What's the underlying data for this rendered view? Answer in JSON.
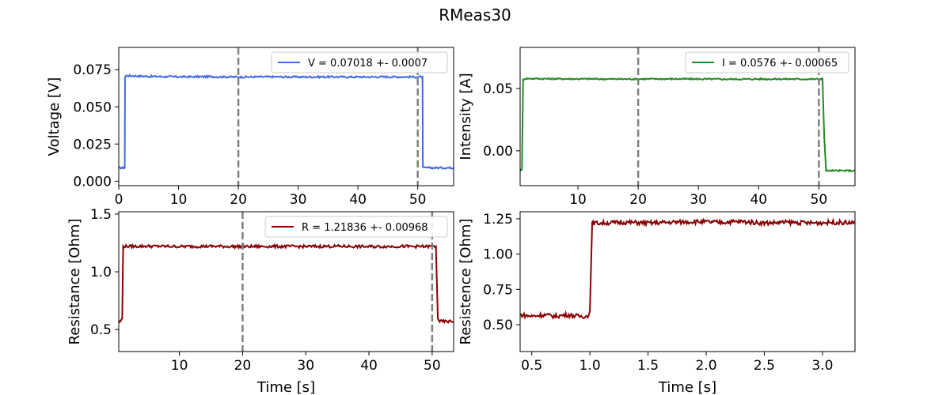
{
  "figure": {
    "title": "RMeas30"
  },
  "chart_data": [
    {
      "type": "line",
      "xlabel": "",
      "ylabel": "Voltage [V]",
      "xlim": [
        0,
        56
      ],
      "ylim": [
        -0.003,
        0.09
      ],
      "xticks": [
        0,
        10,
        20,
        30,
        40,
        50
      ],
      "yticks": [
        0.0,
        0.025,
        0.05,
        0.075
      ],
      "ytick_labels": [
        "0.000",
        "0.025",
        "0.050",
        "0.075"
      ],
      "legend_position": "top-right",
      "vlines": [
        20,
        50
      ],
      "vline_color": "#808080",
      "series": [
        {
          "name": "V = 0.07018 +- 0.0007",
          "color": "#4169e1",
          "x": [
            0,
            1.0,
            1.05,
            1.2,
            5,
            10,
            15,
            20,
            25,
            30,
            35,
            40,
            45,
            50,
            50.8,
            50.85,
            51.0,
            56
          ],
          "y": [
            0.009,
            0.009,
            0.07,
            0.071,
            0.0705,
            0.0702,
            0.0703,
            0.0701,
            0.0702,
            0.0701,
            0.0702,
            0.0701,
            0.0702,
            0.0701,
            0.0702,
            0.009,
            0.009,
            0.009
          ],
          "noise": 0.0006
        }
      ]
    },
    {
      "type": "line",
      "xlabel": "",
      "ylabel": "Intensity [A]",
      "xlim": [
        0.4,
        56
      ],
      "ylim": [
        -0.028,
        0.083
      ],
      "xticks": [
        10,
        20,
        30,
        40,
        50
      ],
      "yticks": [
        0.0,
        0.05
      ],
      "ytick_labels": [
        "0.00",
        "0.05"
      ],
      "legend_position": "top-right",
      "vlines": [
        20,
        50
      ],
      "vline_color": "#808080",
      "series": [
        {
          "name": "I = 0.0576 +- 0.00065",
          "color": "#228b22",
          "x": [
            0.4,
            0.7,
            0.9,
            1.2,
            5,
            10,
            15,
            20,
            25,
            30,
            35,
            40,
            45,
            50,
            50.6,
            50.9,
            51.2,
            56
          ],
          "y": [
            -0.016,
            -0.015,
            0.057,
            0.058,
            0.0578,
            0.0577,
            0.0576,
            0.0576,
            0.0577,
            0.0576,
            0.0575,
            0.0576,
            0.0576,
            0.0575,
            0.058,
            0.01,
            -0.016,
            -0.016
          ],
          "noise": 0.0006
        }
      ]
    },
    {
      "type": "line",
      "xlabel": "Time [s]",
      "ylabel": "Resistance [Ohm]",
      "xlim": [
        0.4,
        53.4
      ],
      "ylim": [
        0.31,
        1.52
      ],
      "xticks": [
        10,
        20,
        30,
        40,
        50
      ],
      "yticks": [
        0.5,
        1.0,
        1.5
      ],
      "ytick_labels": [
        "0.5",
        "1.0",
        "1.5"
      ],
      "legend_position": "top-right",
      "vlines": [
        20,
        50
      ],
      "vline_color": "#808080",
      "series": [
        {
          "name": "R = 1.21836 +- 0.00968",
          "color": "#8b0000",
          "x": [
            0.4,
            0.8,
            0.95,
            1.1,
            5,
            10,
            15,
            20,
            25,
            30,
            35,
            40,
            45,
            50,
            50.6,
            50.9,
            51.2,
            53.4
          ],
          "y": [
            0.56,
            0.58,
            0.6,
            1.22,
            1.222,
            1.219,
            1.221,
            1.218,
            1.22,
            1.219,
            1.221,
            1.218,
            1.22,
            1.219,
            1.22,
            0.6,
            0.57,
            0.57
          ],
          "noise": 0.012
        }
      ]
    },
    {
      "type": "line",
      "xlabel": "Time [s]",
      "ylabel": "Resistence [Ohm]",
      "xlim": [
        0.4,
        3.28
      ],
      "ylim": [
        0.31,
        1.3
      ],
      "xticks": [
        0.5,
        1.0,
        1.5,
        2.0,
        2.5,
        3.0
      ],
      "xtick_labels": [
        "0.5",
        "1.0",
        "1.5",
        "2.0",
        "2.5",
        "3.0"
      ],
      "yticks": [
        0.5,
        0.75,
        1.0,
        1.25
      ],
      "ytick_labels": [
        "0.50",
        "0.75",
        "1.00",
        "1.25"
      ],
      "legend_position": "none",
      "vlines": [],
      "series": [
        {
          "name": "",
          "color": "#8b0000",
          "x": [
            0.4,
            0.5,
            0.6,
            0.7,
            0.8,
            0.9,
            0.98,
            1.0,
            1.02,
            1.1,
            1.3,
            1.5,
            1.7,
            1.9,
            2.1,
            2.3,
            2.5,
            2.7,
            2.9,
            3.1,
            3.28
          ],
          "y": [
            0.57,
            0.56,
            0.57,
            0.56,
            0.57,
            0.56,
            0.56,
            0.6,
            1.22,
            1.22,
            1.225,
            1.22,
            1.225,
            1.23,
            1.225,
            1.23,
            1.22,
            1.225,
            1.22,
            1.225,
            1.22
          ],
          "noise": 0.015
        }
      ]
    }
  ]
}
